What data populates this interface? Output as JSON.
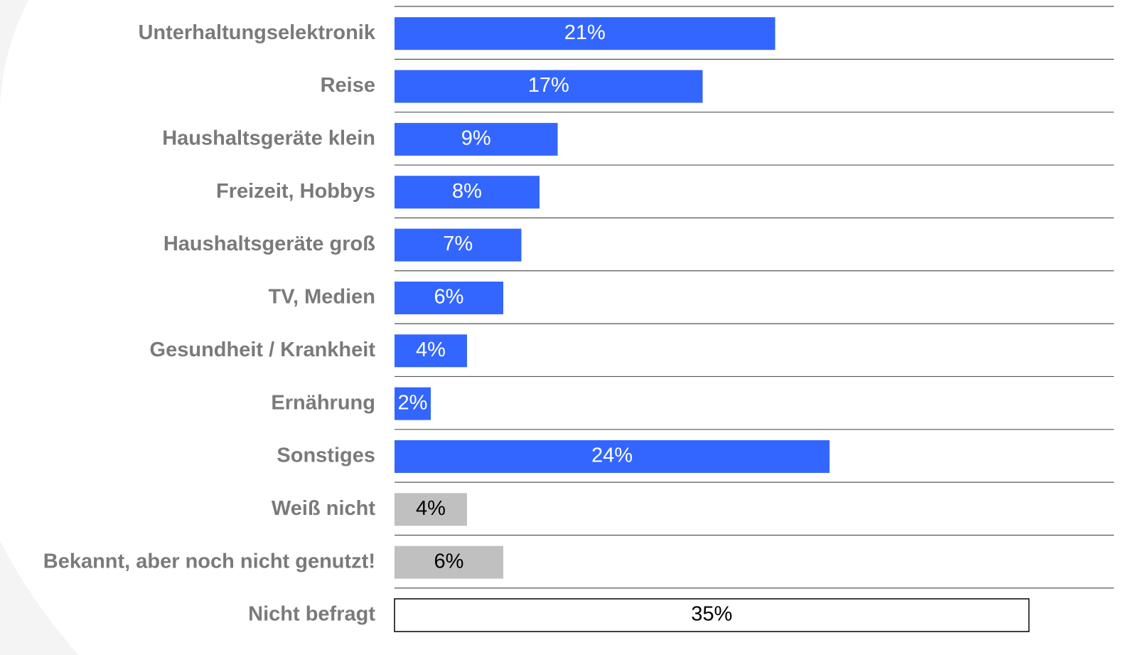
{
  "chart_data": {
    "type": "bar",
    "orientation": "horizontal",
    "categories": [
      "Unterhaltungselektronik",
      "Reise",
      "Haushaltsgeräte klein",
      "Freizeit, Hobbys",
      "Haushaltsgeräte groß",
      "TV, Medien",
      "Gesundheit / Krankheit",
      "Ernährung",
      "Sonstiges",
      "Weiß nicht",
      "Bekannt, aber noch nicht genutzt!",
      "Nicht befragt"
    ],
    "values": [
      21,
      17,
      9,
      8,
      7,
      6,
      4,
      2,
      24,
      4,
      6,
      35
    ],
    "value_labels": [
      "21%",
      "17%",
      "9%",
      "8%",
      "7%",
      "6%",
      "4%",
      "2%",
      "24%",
      "4%",
      "6%",
      "35%"
    ],
    "colors": [
      "#3366ff",
      "#3366ff",
      "#3366ff",
      "#3366ff",
      "#3366ff",
      "#3366ff",
      "#3366ff",
      "#3366ff",
      "#3366ff",
      "#c0c0c0",
      "#c0c0c0",
      "#ffffff"
    ],
    "xlim": [
      0,
      40
    ]
  }
}
